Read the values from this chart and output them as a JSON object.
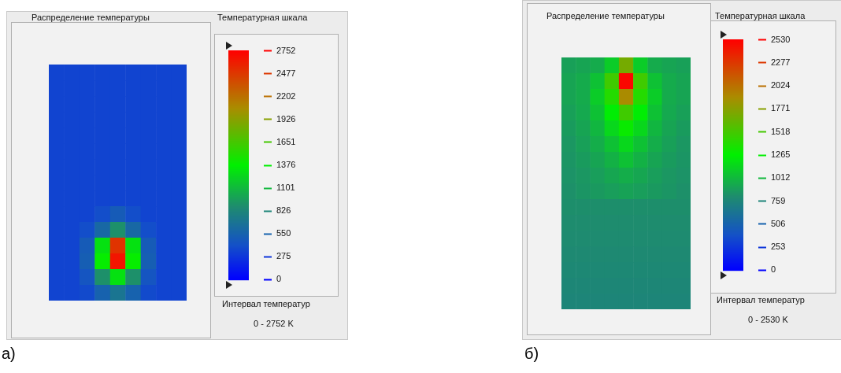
{
  "chart_data": [
    {
      "type": "heatmap",
      "title": "Распределение температуры",
      "clabel": "Температурная шкала",
      "categories": [
        null,
        null,
        null,
        null,
        null,
        null,
        null,
        null,
        null
      ],
      "y_categories": [
        null,
        null,
        null,
        null,
        null,
        null,
        null,
        null,
        null,
        null,
        null,
        null,
        null,
        null,
        null
      ],
      "cells": [
        [
          350,
          350,
          350,
          350,
          350,
          350,
          350,
          350,
          350
        ],
        [
          350,
          350,
          350,
          350,
          350,
          350,
          350,
          350,
          350
        ],
        [
          350,
          350,
          350,
          350,
          350,
          350,
          350,
          350,
          350
        ],
        [
          350,
          350,
          350,
          350,
          350,
          350,
          350,
          350,
          350
        ],
        [
          350,
          350,
          350,
          350,
          350,
          350,
          350,
          350,
          350
        ],
        [
          350,
          350,
          350,
          350,
          350,
          350,
          350,
          350,
          350
        ],
        [
          350,
          350,
          350,
          350,
          350,
          350,
          350,
          350,
          350
        ],
        [
          350,
          350,
          350,
          350,
          350,
          350,
          350,
          350,
          350
        ],
        [
          350,
          350,
          350,
          350,
          350,
          350,
          350,
          350,
          350
        ],
        [
          350,
          350,
          350,
          400,
          500,
          400,
          350,
          350,
          350
        ],
        [
          350,
          350,
          400,
          600,
          900,
          600,
          400,
          350,
          350
        ],
        [
          350,
          350,
          500,
          1300,
          2500,
          1300,
          500,
          350,
          350
        ],
        [
          350,
          350,
          520,
          1400,
          2650,
          1400,
          520,
          350,
          350
        ],
        [
          350,
          350,
          450,
          900,
          1300,
          900,
          450,
          350,
          350
        ],
        [
          350,
          350,
          380,
          550,
          700,
          550,
          380,
          350,
          350
        ]
      ],
      "clim": [
        0,
        2752
      ],
      "cticks": [
        0,
        275,
        550,
        826,
        1101,
        1376,
        1651,
        1926,
        2202,
        2477,
        2752
      ],
      "annotations": [
        "Интервал температур",
        "0 - 2752 K",
        "а)"
      ]
    },
    {
      "type": "heatmap",
      "title": "Распределение температуры",
      "clabel": "Температурная шкала",
      "categories": [
        null,
        null,
        null,
        null,
        null,
        null,
        null,
        null,
        null
      ],
      "y_categories": [
        null,
        null,
        null,
        null,
        null,
        null,
        null,
        null,
        null,
        null,
        null,
        null,
        null,
        null,
        null,
        null
      ],
      "cells": [
        [
          900,
          920,
          950,
          1100,
          1700,
          1100,
          950,
          920,
          900
        ],
        [
          920,
          950,
          1050,
          1500,
          2500,
          1500,
          1050,
          950,
          920
        ],
        [
          920,
          950,
          1100,
          1400,
          1900,
          1400,
          1100,
          950,
          920
        ],
        [
          900,
          940,
          1050,
          1250,
          1500,
          1250,
          1050,
          940,
          900
        ],
        [
          880,
          920,
          1000,
          1150,
          1300,
          1150,
          1000,
          920,
          880
        ],
        [
          860,
          900,
          960,
          1050,
          1150,
          1050,
          960,
          900,
          860
        ],
        [
          850,
          880,
          920,
          980,
          1050,
          980,
          920,
          880,
          850
        ],
        [
          840,
          860,
          890,
          930,
          960,
          930,
          890,
          860,
          840
        ],
        [
          830,
          850,
          870,
          890,
          910,
          890,
          870,
          850,
          830
        ],
        [
          820,
          820,
          820,
          820,
          820,
          820,
          820,
          820,
          820
        ],
        [
          810,
          810,
          810,
          810,
          810,
          810,
          810,
          810,
          810
        ],
        [
          800,
          800,
          800,
          800,
          800,
          800,
          800,
          800,
          800
        ],
        [
          790,
          790,
          790,
          790,
          790,
          790,
          790,
          790,
          790
        ],
        [
          780,
          780,
          780,
          780,
          780,
          780,
          780,
          780,
          780
        ],
        [
          770,
          770,
          770,
          770,
          770,
          770,
          770,
          770,
          770
        ],
        [
          760,
          760,
          760,
          760,
          760,
          760,
          760,
          760,
          760
        ]
      ],
      "clim": [
        0,
        2530
      ],
      "cticks": [
        0,
        253,
        506,
        759,
        1012,
        1265,
        1518,
        1771,
        2024,
        2277,
        2530
      ],
      "annotations": [
        "Интервал температур",
        "0 - 2530 K",
        "б)"
      ]
    }
  ]
}
